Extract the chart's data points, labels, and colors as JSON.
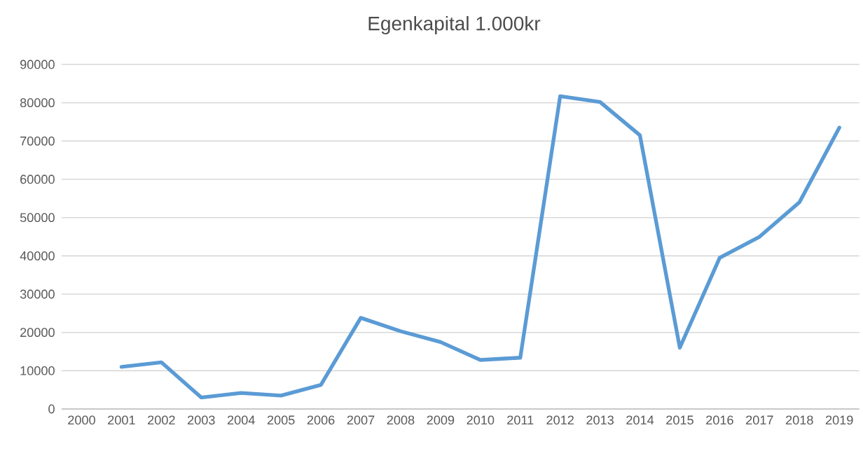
{
  "chart_data": {
    "type": "line",
    "title": "Egenkapital 1.000kr",
    "categories": [
      "2000",
      "2001",
      "2002",
      "2003",
      "2004",
      "2005",
      "2006",
      "2007",
      "2008",
      "2009",
      "2010",
      "2011",
      "2012",
      "2013",
      "2014",
      "2015",
      "2016",
      "2017",
      "2018",
      "2019"
    ],
    "series": [
      {
        "color": "#5b9bd5",
        "values": [
          null,
          11000,
          12200,
          3000,
          4200,
          3500,
          6300,
          23800,
          20300,
          17500,
          12800,
          13400,
          81700,
          80200,
          71500,
          16000,
          39500,
          45000,
          54000,
          73500
        ]
      }
    ],
    "ylim": [
      0,
      90000
    ],
    "yticks": [
      0,
      10000,
      20000,
      30000,
      40000,
      50000,
      60000,
      70000,
      80000,
      90000
    ],
    "grid": "y",
    "marker": "none",
    "line_style": "solid"
  }
}
